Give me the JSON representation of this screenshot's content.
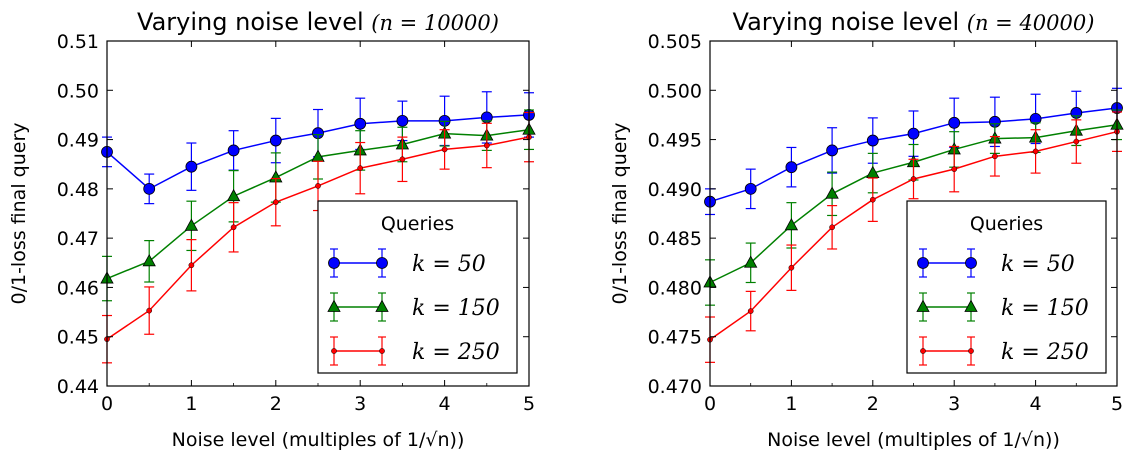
{
  "chart_data": [
    {
      "type": "line",
      "title": "Varying noise level",
      "title_math": "(n = 10000)",
      "xlabel": "Noise level (multiples of 1/√n))",
      "ylabel": "0/1-loss final query",
      "xlim": [
        0,
        5
      ],
      "ylim": [
        0.44,
        0.51
      ],
      "xticks": [
        "0",
        "1",
        "2",
        "3",
        "4",
        "5"
      ],
      "yticks": [
        "0.44",
        "0.45",
        "0.46",
        "0.47",
        "0.48",
        "0.49",
        "0.50",
        "0.51"
      ],
      "grid": false,
      "legend_title": "Queries",
      "legend_placement": "lower-right",
      "x": [
        0,
        0.5,
        1,
        1.5,
        2,
        2.5,
        3,
        3.5,
        4,
        4.5,
        5
      ],
      "series": [
        {
          "name": "k = 50",
          "color": "#0000ff",
          "marker": "circle",
          "values": [
            0.4875,
            0.48,
            0.4845,
            0.4878,
            0.4898,
            0.4913,
            0.4932,
            0.4938,
            0.4938,
            0.4945,
            0.495
          ],
          "err": [
            0.003,
            0.003,
            0.0048,
            0.004,
            0.0045,
            0.0048,
            0.0052,
            0.004,
            0.005,
            0.0052,
            0.0045
          ]
        },
        {
          "name": "k = 150",
          "color": "#008000",
          "marker": "triangle",
          "values": [
            0.4618,
            0.4653,
            0.4725,
            0.4785,
            0.4823,
            0.4865,
            0.4878,
            0.489,
            0.4912,
            0.4908,
            0.492
          ],
          "err": [
            0.0045,
            0.0042,
            0.005,
            0.0052,
            0.005,
            0.0045,
            0.004,
            0.0035,
            0.0025,
            0.003,
            0.004
          ]
        },
        {
          "name": "k = 250",
          "color": "#ff0000",
          "marker": "dot",
          "values": [
            0.4495,
            0.4553,
            0.4645,
            0.4722,
            0.4773,
            0.4806,
            0.4842,
            0.486,
            0.488,
            0.4888,
            0.4905
          ],
          "err": [
            0.0048,
            0.0048,
            0.0052,
            0.005,
            0.0048,
            0.005,
            0.0052,
            0.0045,
            0.004,
            0.0045,
            0.005
          ]
        }
      ]
    },
    {
      "type": "line",
      "title": "Varying noise level",
      "title_math": "(n = 40000)",
      "xlabel": "Noise level (multiples of 1/√n))",
      "ylabel": "0/1-loss final query",
      "xlim": [
        0,
        5
      ],
      "ylim": [
        0.47,
        0.505
      ],
      "xticks": [
        "0",
        "1",
        "2",
        "3",
        "4",
        "5"
      ],
      "yticks": [
        "0.470",
        "0.475",
        "0.480",
        "0.485",
        "0.490",
        "0.495",
        "0.500",
        "0.505"
      ],
      "grid": false,
      "legend_title": "Queries",
      "legend_placement": "lower-right",
      "x": [
        0,
        0.5,
        1,
        1.5,
        2,
        2.5,
        3,
        3.5,
        4,
        4.5,
        5
      ],
      "series": [
        {
          "name": "k = 50",
          "color": "#0000ff",
          "marker": "circle",
          "values": [
            0.4887,
            0.49,
            0.4922,
            0.4939,
            0.4949,
            0.4956,
            0.4967,
            0.4968,
            0.4971,
            0.4977,
            0.4982
          ],
          "err": [
            0.0013,
            0.002,
            0.002,
            0.0023,
            0.0023,
            0.0023,
            0.0025,
            0.0025,
            0.0025,
            0.0022,
            0.002
          ]
        },
        {
          "name": "k = 150",
          "color": "#008000",
          "marker": "triangle",
          "values": [
            0.4805,
            0.4825,
            0.4863,
            0.4895,
            0.4916,
            0.4927,
            0.494,
            0.4951,
            0.4952,
            0.4959,
            0.4965
          ],
          "err": [
            0.0023,
            0.002,
            0.0023,
            0.0022,
            0.002,
            0.0018,
            0.0018,
            0.0015,
            0.0015,
            0.0015,
            0.0015
          ]
        },
        {
          "name": "k = 250",
          "color": "#ff0000",
          "marker": "dot",
          "values": [
            0.4747,
            0.4776,
            0.482,
            0.4861,
            0.4889,
            0.491,
            0.492,
            0.4933,
            0.4938,
            0.4948,
            0.4958
          ],
          "err": [
            0.0023,
            0.002,
            0.0023,
            0.0022,
            0.0022,
            0.002,
            0.0023,
            0.002,
            0.0022,
            0.0022,
            0.002
          ]
        }
      ]
    }
  ]
}
